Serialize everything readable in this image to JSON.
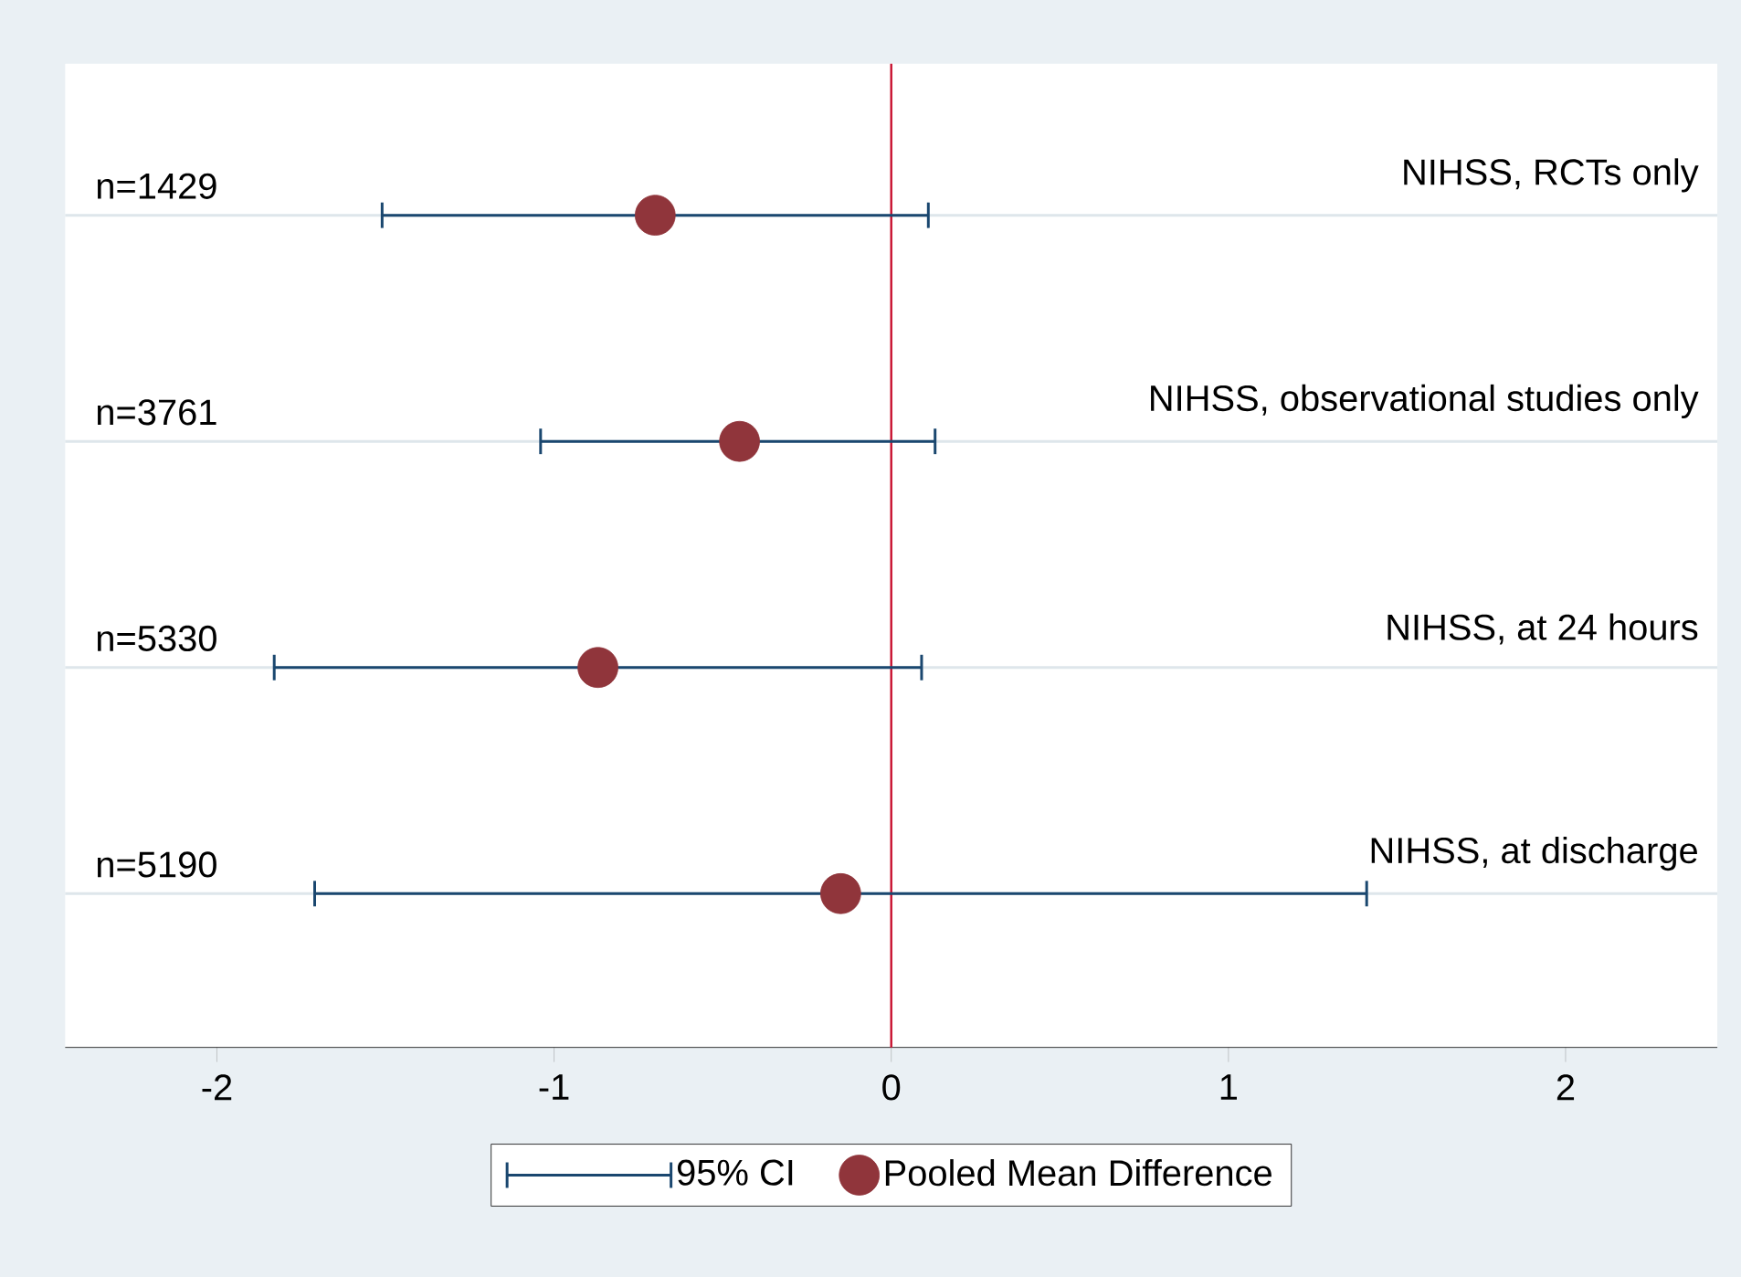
{
  "chart_data": {
    "type": "scatter",
    "orientation": "horizontal",
    "categories": [
      "NIHSS, RCTs only",
      "NIHSS, observational studies only",
      "NIHSS, at 24 hours",
      "NIHSS, at discharge"
    ],
    "series": [
      {
        "name": "Pooled Mean Difference",
        "color": "#90353b",
        "marker": "circle",
        "values": [
          -0.7,
          -0.45,
          -0.87,
          -0.15
        ],
        "errors": [
          [
            -1.51,
            0.11
          ],
          [
            -1.04,
            0.13
          ],
          [
            -1.83,
            0.09
          ],
          [
            -1.71,
            1.41
          ]
        ]
      }
    ],
    "annotations": [
      "n=1429",
      "n=3761",
      "n=5330",
      "n=5190",
      "95% CI"
    ],
    "xlim": [
      -2.45,
      2.45
    ],
    "xticks": [
      -2,
      -1,
      0,
      1,
      2
    ],
    "ref_lines": [
      {
        "axis": "x",
        "value": 0,
        "color": "#c8102e"
      }
    ],
    "grid": "y",
    "legend": "bottom"
  }
}
